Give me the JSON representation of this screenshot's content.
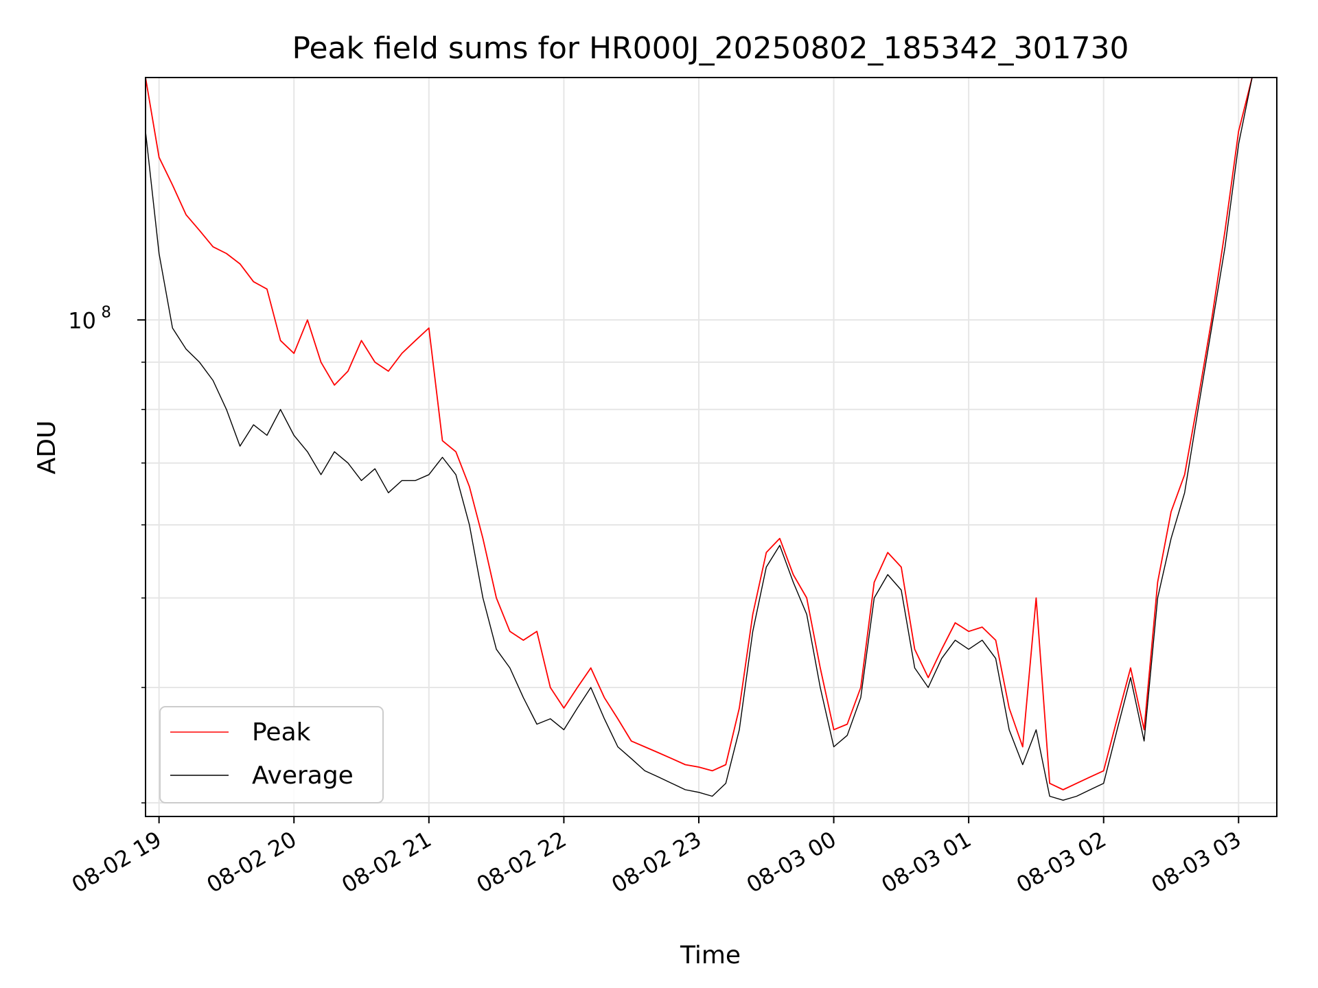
{
  "chart_data": {
    "type": "line",
    "title": "Peak field sums for HR000J_20250802_185342_301730",
    "xlabel": "Time",
    "ylabel": "ADU",
    "yscale": "log",
    "x_ticks": [
      "08-02 19",
      "08-02 20",
      "08-02 21",
      "08-02 22",
      "08-02 23",
      "08-03 00",
      "08-03 01",
      "08-03 02",
      "08-03 03"
    ],
    "y_ticks": [
      {
        "value": 100000000,
        "base": "10",
        "exponent": "8"
      }
    ],
    "xlim": [
      "2025-08-02 18:54",
      "2025-08-03 03:17"
    ],
    "ylim": [
      29000000,
      183000000
    ],
    "grid": true,
    "legend": {
      "position": "lower-left",
      "entries": [
        "Peak",
        "Average"
      ]
    },
    "series": [
      {
        "name": "Peak",
        "color": "#ff0000",
        "x": [
          "2025-08-02 18:54",
          "2025-08-02 19:00",
          "2025-08-02 19:06",
          "2025-08-02 19:12",
          "2025-08-02 19:18",
          "2025-08-02 19:24",
          "2025-08-02 19:30",
          "2025-08-02 19:36",
          "2025-08-02 19:42",
          "2025-08-02 19:48",
          "2025-08-02 19:54",
          "2025-08-02 20:00",
          "2025-08-02 20:06",
          "2025-08-02 20:12",
          "2025-08-02 20:18",
          "2025-08-02 20:24",
          "2025-08-02 20:30",
          "2025-08-02 20:36",
          "2025-08-02 20:42",
          "2025-08-02 20:48",
          "2025-08-02 20:54",
          "2025-08-02 21:00",
          "2025-08-02 21:06",
          "2025-08-02 21:12",
          "2025-08-02 21:18",
          "2025-08-02 21:24",
          "2025-08-02 21:30",
          "2025-08-02 21:36",
          "2025-08-02 21:42",
          "2025-08-02 21:48",
          "2025-08-02 21:54",
          "2025-08-02 22:00",
          "2025-08-02 22:06",
          "2025-08-02 22:12",
          "2025-08-02 22:18",
          "2025-08-02 22:24",
          "2025-08-02 22:30",
          "2025-08-02 22:36",
          "2025-08-02 22:42",
          "2025-08-02 22:48",
          "2025-08-02 22:54",
          "2025-08-02 23:00",
          "2025-08-02 23:06",
          "2025-08-02 23:12",
          "2025-08-02 23:18",
          "2025-08-02 23:24",
          "2025-08-02 23:30",
          "2025-08-02 23:36",
          "2025-08-02 23:42",
          "2025-08-02 23:48",
          "2025-08-02 23:54",
          "2025-08-03 00:00",
          "2025-08-03 00:06",
          "2025-08-03 00:12",
          "2025-08-03 00:18",
          "2025-08-03 00:24",
          "2025-08-03 00:30",
          "2025-08-03 00:36",
          "2025-08-03 00:42",
          "2025-08-03 00:48",
          "2025-08-03 00:54",
          "2025-08-03 01:00",
          "2025-08-03 01:06",
          "2025-08-03 01:12",
          "2025-08-03 01:18",
          "2025-08-03 01:24",
          "2025-08-03 01:30",
          "2025-08-03 01:36",
          "2025-08-03 01:42",
          "2025-08-03 01:48",
          "2025-08-03 01:54",
          "2025-08-03 02:00",
          "2025-08-03 02:06",
          "2025-08-03 02:12",
          "2025-08-03 02:18",
          "2025-08-03 02:24",
          "2025-08-03 02:30",
          "2025-08-03 02:36",
          "2025-08-03 02:42",
          "2025-08-03 02:48",
          "2025-08-03 02:54",
          "2025-08-03 03:00",
          "2025-08-03 03:06"
        ],
        "y": [
          183000000,
          150000000,
          140000000,
          130000000,
          125000000,
          120000000,
          118000000,
          115000000,
          110000000,
          108000000,
          95000000,
          92000000,
          100000000,
          90000000,
          85000000,
          88000000,
          95000000,
          90000000,
          88000000,
          92000000,
          95000000,
          98000000,
          74000000,
          72000000,
          66000000,
          58000000,
          50000000,
          46000000,
          45000000,
          46000000,
          40000000,
          38000000,
          40000000,
          42000000,
          39000000,
          37000000,
          35000000,
          34500000,
          34000000,
          33500000,
          33000000,
          32800000,
          32500000,
          33000000,
          38000000,
          48000000,
          56000000,
          58000000,
          53000000,
          50000000,
          42000000,
          36000000,
          36500000,
          40000000,
          52000000,
          56000000,
          54000000,
          44000000,
          41000000,
          44000000,
          47000000,
          46000000,
          46500000,
          45000000,
          38000000,
          34500000,
          50000000,
          31500000,
          31000000,
          31500000,
          32000000,
          32500000,
          37000000,
          42000000,
          36000000,
          52000000,
          62000000,
          68000000,
          82000000,
          100000000,
          125000000,
          160000000,
          183000000
        ]
      },
      {
        "name": "Average",
        "color": "#000000",
        "x": [
          "2025-08-02 18:54",
          "2025-08-02 19:00",
          "2025-08-02 19:06",
          "2025-08-02 19:12",
          "2025-08-02 19:18",
          "2025-08-02 19:24",
          "2025-08-02 19:30",
          "2025-08-02 19:36",
          "2025-08-02 19:42",
          "2025-08-02 19:48",
          "2025-08-02 19:54",
          "2025-08-02 20:00",
          "2025-08-02 20:06",
          "2025-08-02 20:12",
          "2025-08-02 20:18",
          "2025-08-02 20:24",
          "2025-08-02 20:30",
          "2025-08-02 20:36",
          "2025-08-02 20:42",
          "2025-08-02 20:48",
          "2025-08-02 20:54",
          "2025-08-02 21:00",
          "2025-08-02 21:06",
          "2025-08-02 21:12",
          "2025-08-02 21:18",
          "2025-08-02 21:24",
          "2025-08-02 21:30",
          "2025-08-02 21:36",
          "2025-08-02 21:42",
          "2025-08-02 21:48",
          "2025-08-02 21:54",
          "2025-08-02 22:00",
          "2025-08-02 22:06",
          "2025-08-02 22:12",
          "2025-08-02 22:18",
          "2025-08-02 22:24",
          "2025-08-02 22:30",
          "2025-08-02 22:36",
          "2025-08-02 22:42",
          "2025-08-02 22:48",
          "2025-08-02 22:54",
          "2025-08-02 23:00",
          "2025-08-02 23:06",
          "2025-08-02 23:12",
          "2025-08-02 23:18",
          "2025-08-02 23:24",
          "2025-08-02 23:30",
          "2025-08-02 23:36",
          "2025-08-02 23:42",
          "2025-08-02 23:48",
          "2025-08-02 23:54",
          "2025-08-03 00:00",
          "2025-08-03 00:06",
          "2025-08-03 00:12",
          "2025-08-03 00:18",
          "2025-08-03 00:24",
          "2025-08-03 00:30",
          "2025-08-03 00:36",
          "2025-08-03 00:42",
          "2025-08-03 00:48",
          "2025-08-03 00:54",
          "2025-08-03 01:00",
          "2025-08-03 01:06",
          "2025-08-03 01:12",
          "2025-08-03 01:18",
          "2025-08-03 01:24",
          "2025-08-03 01:30",
          "2025-08-03 01:36",
          "2025-08-03 01:42",
          "2025-08-03 01:48",
          "2025-08-03 01:54",
          "2025-08-03 02:00",
          "2025-08-03 02:06",
          "2025-08-03 02:12",
          "2025-08-03 02:18",
          "2025-08-03 02:24",
          "2025-08-03 02:30",
          "2025-08-03 02:36",
          "2025-08-03 02:42",
          "2025-08-03 02:48",
          "2025-08-03 02:54",
          "2025-08-03 03:00",
          "2025-08-03 03:06"
        ],
        "y": [
          160000000,
          118000000,
          98000000,
          93000000,
          90000000,
          86000000,
          80000000,
          73000000,
          77000000,
          75000000,
          80000000,
          75000000,
          72000000,
          68000000,
          72000000,
          70000000,
          67000000,
          69000000,
          65000000,
          67000000,
          67000000,
          68000000,
          71000000,
          68000000,
          60000000,
          50000000,
          44000000,
          42000000,
          39000000,
          36500000,
          37000000,
          36000000,
          38000000,
          40000000,
          37000000,
          34500000,
          33500000,
          32500000,
          32000000,
          31500000,
          31000000,
          30800000,
          30500000,
          31500000,
          36000000,
          46000000,
          54000000,
          57000000,
          52000000,
          48000000,
          40000000,
          34500000,
          35500000,
          39000000,
          50000000,
          53000000,
          51000000,
          42000000,
          40000000,
          43000000,
          45000000,
          44000000,
          45000000,
          43000000,
          36000000,
          33000000,
          36000000,
          30500000,
          30200000,
          30500000,
          31000000,
          31500000,
          36000000,
          41000000,
          35000000,
          50000000,
          58000000,
          65000000,
          80000000,
          98000000,
          120000000,
          155000000,
          183000000
        ]
      }
    ]
  }
}
